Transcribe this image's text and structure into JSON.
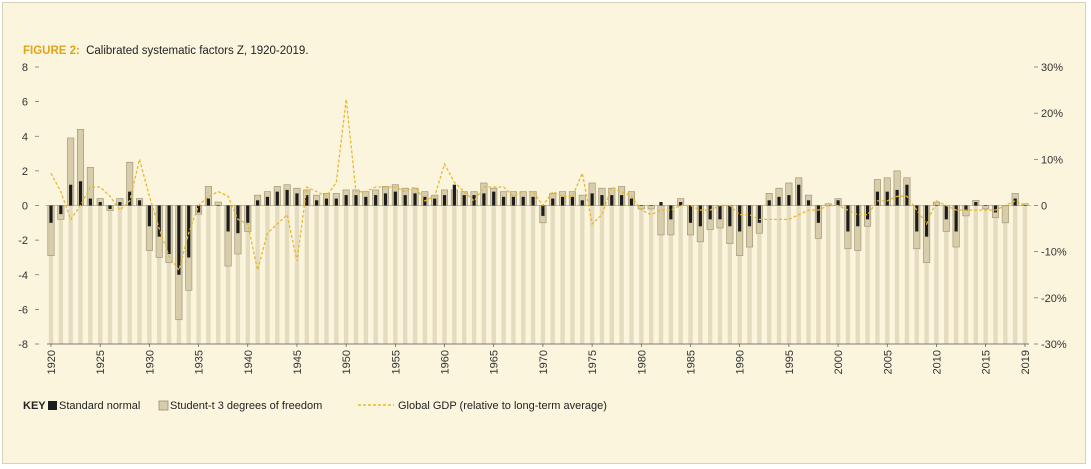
{
  "chart_data": {
    "type": "bar",
    "title_prefix": "FIGURE 2:",
    "title": "Calibrated systematic factors Z, 1920-2019.",
    "years": [
      1920,
      1921,
      1922,
      1923,
      1924,
      1925,
      1926,
      1927,
      1928,
      1929,
      1930,
      1931,
      1932,
      1933,
      1934,
      1935,
      1936,
      1937,
      1938,
      1939,
      1940,
      1941,
      1942,
      1943,
      1944,
      1945,
      1946,
      1947,
      1948,
      1949,
      1950,
      1951,
      1952,
      1953,
      1954,
      1955,
      1956,
      1957,
      1958,
      1959,
      1960,
      1961,
      1962,
      1963,
      1964,
      1965,
      1966,
      1967,
      1968,
      1969,
      1970,
      1971,
      1972,
      1973,
      1974,
      1975,
      1976,
      1977,
      1978,
      1979,
      1980,
      1981,
      1982,
      1983,
      1984,
      1985,
      1986,
      1987,
      1988,
      1989,
      1990,
      1991,
      1992,
      1993,
      1994,
      1995,
      1996,
      1997,
      1998,
      1999,
      2000,
      2001,
      2002,
      2003,
      2004,
      2005,
      2006,
      2007,
      2008,
      2009,
      2010,
      2011,
      2012,
      2013,
      2014,
      2015,
      2016,
      2017,
      2018,
      2019
    ],
    "x_tick_labels": [
      "1920",
      "1925",
      "1930",
      "1935",
      "1940",
      "1945",
      "1950",
      "1955",
      "1960",
      "1965",
      "1970",
      "1975",
      "1980",
      "1985",
      "1990",
      "1995",
      "2000",
      "2005",
      "2010",
      "2015",
      "2019"
    ],
    "series": [
      {
        "name": "Standard normal",
        "color": "#1c1c1c",
        "values": [
          -1.0,
          -0.5,
          1.2,
          1.4,
          0.4,
          0.2,
          -0.2,
          0.2,
          0.8,
          0.3,
          -1.2,
          -1.8,
          -2.8,
          -4.0,
          -3.0,
          -0.4,
          0.4,
          0.0,
          -1.5,
          -1.6,
          -1.0,
          0.3,
          0.5,
          0.8,
          0.9,
          0.7,
          0.6,
          0.3,
          0.4,
          0.4,
          0.6,
          0.6,
          0.5,
          0.6,
          0.7,
          0.8,
          0.6,
          0.7,
          0.5,
          0.4,
          0.6,
          1.2,
          0.6,
          0.6,
          0.7,
          0.8,
          0.5,
          0.5,
          0.5,
          0.5,
          -0.6,
          0.4,
          0.5,
          0.5,
          0.3,
          0.7,
          0.6,
          0.6,
          0.6,
          0.4,
          0.0,
          0.0,
          0.2,
          -0.8,
          0.2,
          -1.0,
          -1.2,
          -0.8,
          -0.8,
          -1.2,
          -1.5,
          -1.2,
          -1.0,
          0.3,
          0.5,
          0.6,
          1.2,
          0.3,
          -1.0,
          0.0,
          0.3,
          -1.5,
          -1.2,
          -0.8,
          0.8,
          0.8,
          0.9,
          1.2,
          -1.5,
          -1.8,
          0.0,
          -0.8,
          -1.5,
          -0.3,
          0.2,
          0.0,
          -0.4,
          0.0,
          0.4,
          0.0
        ],
        "t_values": [
          -2.9,
          -0.8,
          3.9,
          4.4,
          2.2,
          0.4,
          -0.3,
          0.4,
          2.5,
          0.4,
          -2.6,
          -3.0,
          -3.3,
          -6.6,
          -4.9,
          -0.5,
          1.1,
          0.2,
          -3.5,
          -2.8,
          -1.5,
          0.6,
          0.8,
          1.1,
          1.2,
          1.0,
          0.9,
          0.6,
          0.7,
          0.7,
          0.9,
          0.9,
          0.8,
          0.9,
          1.1,
          1.2,
          1.0,
          1.0,
          0.8,
          0.6,
          0.9,
          0.9,
          0.8,
          0.8,
          1.3,
          1.0,
          0.8,
          0.8,
          0.8,
          0.8,
          -1.0,
          0.7,
          0.8,
          0.8,
          0.6,
          1.3,
          1.0,
          1.0,
          1.1,
          0.8,
          -0.2,
          -0.2,
          -1.7,
          -1.7,
          0.4,
          -1.7,
          -2.1,
          -1.4,
          -1.3,
          -2.2,
          -2.9,
          -2.4,
          -1.6,
          0.7,
          1.0,
          1.3,
          1.6,
          0.6,
          -1.9,
          0.1,
          0.4,
          -2.5,
          -2.6,
          -1.2,
          1.5,
          1.6,
          2.0,
          1.6,
          -2.5,
          -3.3,
          0.2,
          -1.5,
          -2.4,
          -0.6,
          0.3,
          -0.2,
          -0.7,
          -1.0,
          0.7,
          0.1
        ]
      },
      {
        "name": "Student-t 3 degrees of freedom",
        "color": "#d8cdaa"
      }
    ],
    "gdp": {
      "name": "Global GDP (relative to long-term average)",
      "color": "#e8b830",
      "pct": [
        7,
        3,
        -3,
        0,
        4,
        4,
        2,
        -1,
        1,
        10,
        2,
        -5,
        -11,
        -14,
        -6,
        0,
        2,
        3,
        2,
        -3,
        -4,
        -14,
        -6,
        -4,
        -2,
        -12,
        4,
        3,
        2,
        5,
        23,
        3,
        3,
        4,
        4,
        4,
        3,
        4,
        1,
        2,
        9,
        5,
        3,
        1,
        4,
        4,
        4,
        2,
        3,
        3,
        0,
        3,
        2,
        2,
        7,
        -4,
        -2,
        4,
        3,
        2,
        -1,
        -2,
        -1,
        -1,
        0,
        0,
        -1,
        -1,
        0,
        0,
        -2,
        -2,
        -3,
        -3,
        -3,
        -3,
        -2,
        -1,
        -1,
        0,
        0,
        -1,
        -2,
        -2,
        1,
        1,
        2,
        2,
        -1,
        -4,
        1,
        0,
        -1,
        -1,
        -1,
        -1,
        -1,
        0,
        1,
        0
      ],
      "legend_label": "Global GDP (relative to long-term average)"
    },
    "y_left": {
      "min": -8,
      "max": 8,
      "ticks": [
        8,
        6,
        4,
        2,
        0,
        -2,
        -4,
        -6,
        -8
      ],
      "tick_labels": [
        "8",
        "6",
        "4",
        "2",
        "0",
        "-2",
        "-4",
        "-6",
        "-8"
      ]
    },
    "y_right": {
      "min": -30,
      "max": 30,
      "ticks": [
        30,
        20,
        10,
        0,
        -10,
        -20,
        -30
      ],
      "tick_labels": [
        "30%",
        "20%",
        "10%",
        "0",
        "-10%",
        "-20%",
        "-30%"
      ]
    },
    "legend": {
      "key_label": "KEY",
      "items": [
        "Standard normal",
        "Student-t 3 degrees of freedom",
        "Global GDP (relative to long-term average)"
      ]
    }
  },
  "colors": {
    "background": "#fbf5de",
    "accent": "#e2a418",
    "grid": "#cfc7ad",
    "tick_bar": "#e5dcc0"
  }
}
